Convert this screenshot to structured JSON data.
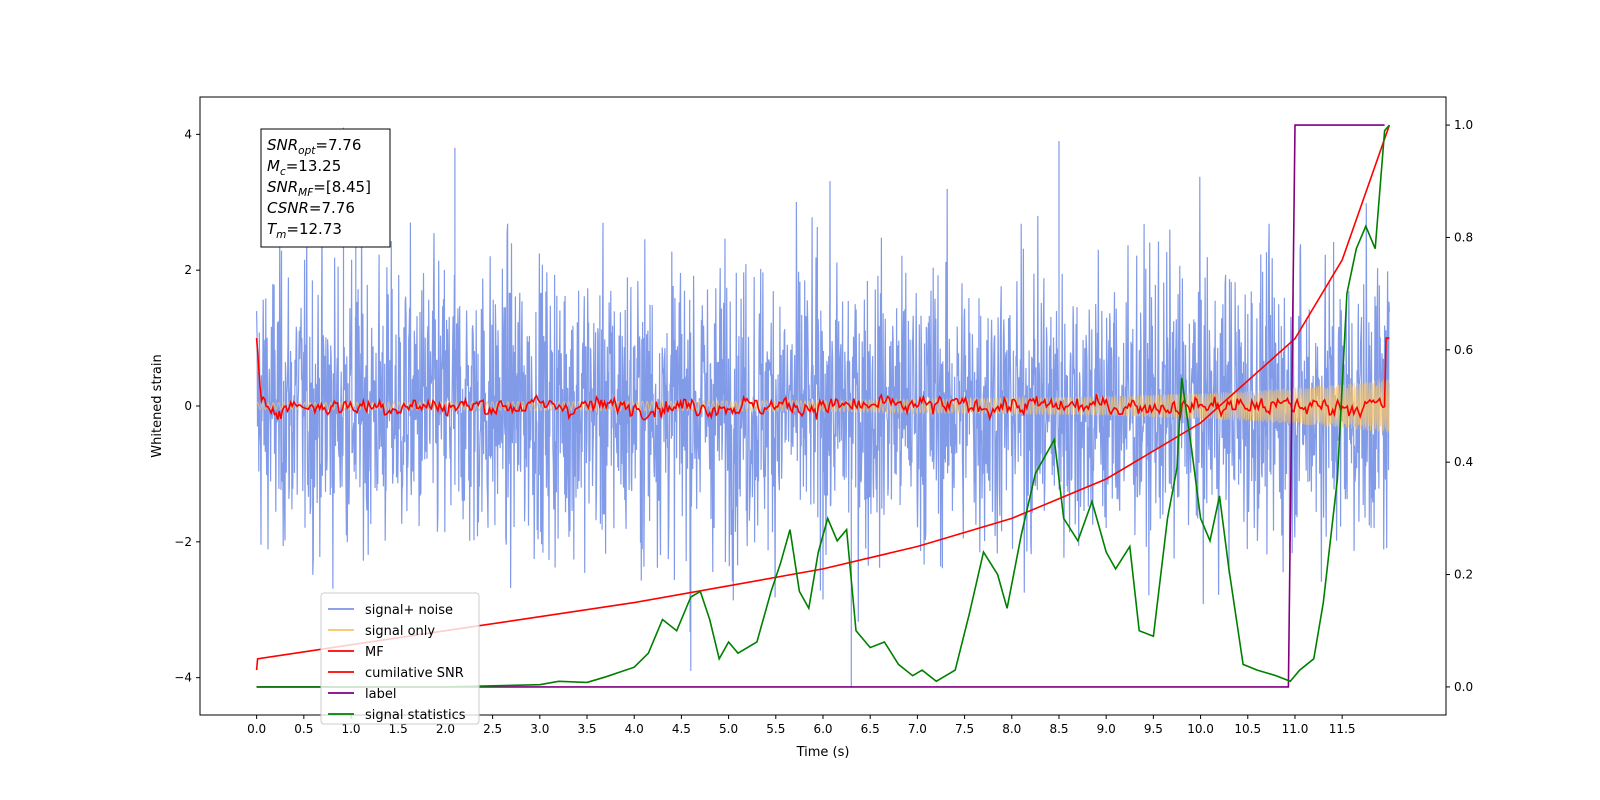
{
  "chart_data": {
    "type": "line",
    "title": "",
    "xlabel": "Time (s)",
    "ylabel": "Whitened strain",
    "y2label": "",
    "xlim": [
      -0.6,
      12.6
    ],
    "ylim": [
      -4.55,
      4.55
    ],
    "y2lim": [
      -0.05,
      1.05
    ],
    "x_ticks": [
      "0.0",
      "0.5",
      "1.0",
      "1.5",
      "2.0",
      "2.5",
      "3.0",
      "3.5",
      "4.0",
      "4.5",
      "5.0",
      "5.5",
      "6.0",
      "6.5",
      "7.0",
      "7.5",
      "8.0",
      "8.5",
      "9.0",
      "9.5",
      "10.0",
      "10.5",
      "11.0",
      "11.5"
    ],
    "y_ticks": [
      "4",
      "2",
      "0",
      "−2",
      "−4"
    ],
    "y2_ticks": [
      "1.0",
      "0.8",
      "0.6",
      "0.4",
      "0.2",
      "0.0"
    ],
    "grid": false,
    "legend_position": "lower-left",
    "stats_box": [
      {
        "name": "SNR",
        "sub": "opt",
        "value": "=7.76"
      },
      {
        "name": "M",
        "sub": "c",
        "value": "=13.25"
      },
      {
        "name": "SNR",
        "sub": "MF",
        "value": "=[8.45]"
      },
      {
        "name": "CSNR",
        "sub": "",
        "value": "=7.76"
      },
      {
        "name": "T",
        "sub": "m",
        "value": "=12.73"
      }
    ],
    "series": [
      {
        "name": "signal+ noise",
        "axis": "left",
        "color": "#7b96e8",
        "description": "dense noisy strain, approx N(0,1.1), peaks to about ±4",
        "x_range": [
          0.0,
          12.0
        ],
        "spikes": [
          [
            0.92,
            4.1
          ],
          [
            1.05,
            3.7
          ],
          [
            2.1,
            3.8
          ],
          [
            6.3,
            -4.15
          ],
          [
            8.5,
            3.9
          ],
          [
            4.6,
            -3.9
          ]
        ]
      },
      {
        "name": "signal only",
        "axis": "left",
        "color": "#f5c46a",
        "description": "chirp with amplitude growing from about 0.05 to 0.4",
        "amplitude": [
          [
            0.0,
            0.05
          ],
          [
            6.0,
            0.08
          ],
          [
            9.0,
            0.14
          ],
          [
            10.5,
            0.22
          ],
          [
            11.5,
            0.32
          ],
          [
            12.0,
            0.4
          ]
        ]
      },
      {
        "name": "MF",
        "axis": "left",
        "color": "#ff0000",
        "description": "matched filter output, oscillating near 0 with edge spikes",
        "points": [
          [
            0.0,
            1.0
          ],
          [
            0.05,
            0.0
          ],
          [
            0.5,
            0.1
          ],
          [
            0.9,
            0.2
          ],
          [
            1.5,
            -0.05
          ],
          [
            2.0,
            0.15
          ],
          [
            3.5,
            0.2
          ],
          [
            6.0,
            0.25
          ],
          [
            9.8,
            0.35
          ],
          [
            10.0,
            0.4
          ],
          [
            11.6,
            0.3
          ],
          [
            12.0,
            1.0
          ]
        ]
      },
      {
        "name": "cumilative SNR",
        "axis": "right",
        "color": "#ff0000",
        "points": [
          [
            0.0,
            0.03
          ],
          [
            0.01,
            0.05
          ],
          [
            1.0,
            0.075
          ],
          [
            2.0,
            0.1
          ],
          [
            3.0,
            0.125
          ],
          [
            4.0,
            0.15
          ],
          [
            5.0,
            0.18
          ],
          [
            6.0,
            0.21
          ],
          [
            7.0,
            0.25
          ],
          [
            8.0,
            0.3
          ],
          [
            9.0,
            0.37
          ],
          [
            10.0,
            0.47
          ],
          [
            11.0,
            0.62
          ],
          [
            11.5,
            0.76
          ],
          [
            12.0,
            1.0
          ]
        ]
      },
      {
        "name": "label",
        "axis": "right",
        "color": "#800080",
        "points": [
          [
            0.0,
            0.0
          ],
          [
            10.93,
            0.0
          ],
          [
            11.0,
            1.0
          ],
          [
            11.95,
            1.0
          ]
        ]
      },
      {
        "name": "signal statistics",
        "axis": "right",
        "color": "#008000",
        "points": [
          [
            0.0,
            0.0
          ],
          [
            0.5,
            0.0
          ],
          [
            1.0,
            0.0
          ],
          [
            1.5,
            0.0
          ],
          [
            2.0,
            0.0
          ],
          [
            2.5,
            0.002
          ],
          [
            3.0,
            0.004
          ],
          [
            3.2,
            0.01
          ],
          [
            3.5,
            0.008
          ],
          [
            3.7,
            0.018
          ],
          [
            4.0,
            0.035
          ],
          [
            4.15,
            0.06
          ],
          [
            4.3,
            0.12
          ],
          [
            4.45,
            0.1
          ],
          [
            4.6,
            0.16
          ],
          [
            4.7,
            0.17
          ],
          [
            4.8,
            0.12
          ],
          [
            4.9,
            0.05
          ],
          [
            5.0,
            0.08
          ],
          [
            5.1,
            0.06
          ],
          [
            5.3,
            0.08
          ],
          [
            5.45,
            0.17
          ],
          [
            5.55,
            0.22
          ],
          [
            5.65,
            0.28
          ],
          [
            5.75,
            0.17
          ],
          [
            5.85,
            0.14
          ],
          [
            5.95,
            0.24
          ],
          [
            6.05,
            0.3
          ],
          [
            6.15,
            0.26
          ],
          [
            6.25,
            0.28
          ],
          [
            6.35,
            0.1
          ],
          [
            6.5,
            0.07
          ],
          [
            6.65,
            0.08
          ],
          [
            6.8,
            0.04
          ],
          [
            6.95,
            0.02
          ],
          [
            7.05,
            0.03
          ],
          [
            7.2,
            0.01
          ],
          [
            7.4,
            0.03
          ],
          [
            7.55,
            0.13
          ],
          [
            7.7,
            0.24
          ],
          [
            7.85,
            0.2
          ],
          [
            7.95,
            0.14
          ],
          [
            8.1,
            0.27
          ],
          [
            8.25,
            0.38
          ],
          [
            8.45,
            0.44
          ],
          [
            8.55,
            0.3
          ],
          [
            8.7,
            0.26
          ],
          [
            8.85,
            0.33
          ],
          [
            9.0,
            0.24
          ],
          [
            9.1,
            0.21
          ],
          [
            9.25,
            0.25
          ],
          [
            9.35,
            0.1
          ],
          [
            9.5,
            0.09
          ],
          [
            9.65,
            0.3
          ],
          [
            9.75,
            0.39
          ],
          [
            9.8,
            0.55
          ],
          [
            9.9,
            0.43
          ],
          [
            10.0,
            0.3
          ],
          [
            10.1,
            0.26
          ],
          [
            10.2,
            0.34
          ],
          [
            10.3,
            0.21
          ],
          [
            10.45,
            0.04
          ],
          [
            10.6,
            0.03
          ],
          [
            10.8,
            0.02
          ],
          [
            10.95,
            0.01
          ],
          [
            11.05,
            0.03
          ],
          [
            11.2,
            0.05
          ],
          [
            11.3,
            0.15
          ],
          [
            11.45,
            0.37
          ],
          [
            11.55,
            0.7
          ],
          [
            11.65,
            0.78
          ],
          [
            11.75,
            0.82
          ],
          [
            11.85,
            0.78
          ],
          [
            11.95,
            0.99
          ],
          [
            12.0,
            1.0
          ]
        ]
      }
    ]
  }
}
